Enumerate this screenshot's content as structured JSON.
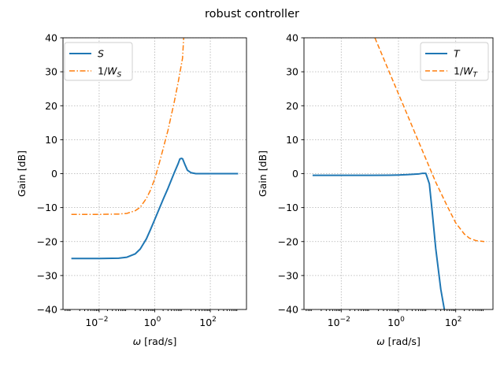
{
  "figure": {
    "title": "robust controller"
  },
  "chart_data": [
    {
      "type": "line",
      "xscale": "log",
      "xlim": [
        0.0005,
        2000
      ],
      "ylim": [
        -40,
        40
      ],
      "xticks": [
        {
          "value": 0.01,
          "base": "10",
          "exp": "−2"
        },
        {
          "value": 1,
          "base": "10",
          "exp": "0"
        },
        {
          "value": 100,
          "base": "10",
          "exp": "2"
        }
      ],
      "yticks": [
        40,
        30,
        20,
        10,
        0,
        -10,
        -20,
        -30,
        -40
      ],
      "xlabel": "ω [rad/s]",
      "ylabel": "Gain [dB]",
      "grid": true,
      "legend": "top-left",
      "series": [
        {
          "name": "S",
          "color": "#1f77b4",
          "style": "solid",
          "x": [
            0.001,
            0.01,
            0.05,
            0.1,
            0.2,
            0.3,
            0.5,
            0.7,
            1,
            2,
            3,
            5,
            7,
            8,
            9,
            10,
            12,
            15,
            20,
            30,
            50,
            100,
            1000
          ],
          "y": [
            -25,
            -25,
            -24.9,
            -24.6,
            -23.6,
            -22.2,
            -19.2,
            -16.5,
            -13.5,
            -7.6,
            -4.3,
            0.2,
            3.0,
            4.3,
            4.5,
            4.4,
            2.8,
            1.0,
            0.3,
            0.0,
            0.0,
            0.0,
            0.0
          ]
        },
        {
          "name": "1/W",
          "name_sub": "S",
          "color": "#ff7f0e",
          "style": "dashdot",
          "x": [
            0.001,
            0.01,
            0.05,
            0.1,
            0.2,
            0.3,
            0.5,
            0.7,
            1,
            1.5,
            2,
            3,
            5,
            7,
            10,
            11
          ],
          "y": [
            -12,
            -12,
            -11.9,
            -11.7,
            -10.9,
            -9.9,
            -7.3,
            -4.9,
            -1.5,
            3.5,
            7.3,
            12.8,
            21,
            27,
            34,
            40
          ]
        }
      ]
    },
    {
      "type": "line",
      "xscale": "log",
      "xlim": [
        0.0005,
        2000
      ],
      "ylim": [
        -40,
        40
      ],
      "xticks": [
        {
          "value": 0.01,
          "base": "10",
          "exp": "−2"
        },
        {
          "value": 1,
          "base": "10",
          "exp": "0"
        },
        {
          "value": 100,
          "base": "10",
          "exp": "2"
        }
      ],
      "yticks": [
        40,
        30,
        20,
        10,
        0,
        -10,
        -20,
        -30,
        -40
      ],
      "xlabel": "ω [rad/s]",
      "ylabel": "Gain [dB]",
      "grid": true,
      "legend": "top-right",
      "series": [
        {
          "name": "T",
          "color": "#1f77b4",
          "style": "solid",
          "x": [
            0.001,
            0.01,
            0.1,
            0.5,
            1,
            2,
            3,
            5,
            7,
            9,
            10,
            12,
            15,
            20,
            30,
            40
          ],
          "y": [
            -0.5,
            -0.5,
            -0.5,
            -0.45,
            -0.4,
            -0.3,
            -0.2,
            -0.1,
            0.1,
            0.1,
            -1.0,
            -3.0,
            -11,
            -22,
            -34,
            -40
          ]
        },
        {
          "name": "1/W",
          "name_sub": "T",
          "color": "#ff7f0e",
          "style": "dashed",
          "x": [
            0.15,
            0.2,
            0.5,
            1,
            2,
            5,
            10,
            20,
            50,
            100,
            200,
            300,
            500,
            1000
          ],
          "y": [
            40,
            37.5,
            29.5,
            23.5,
            17.5,
            9.5,
            3.5,
            -2.5,
            -9.5,
            -14.5,
            -17.8,
            -19,
            -19.7,
            -20
          ]
        }
      ]
    }
  ]
}
